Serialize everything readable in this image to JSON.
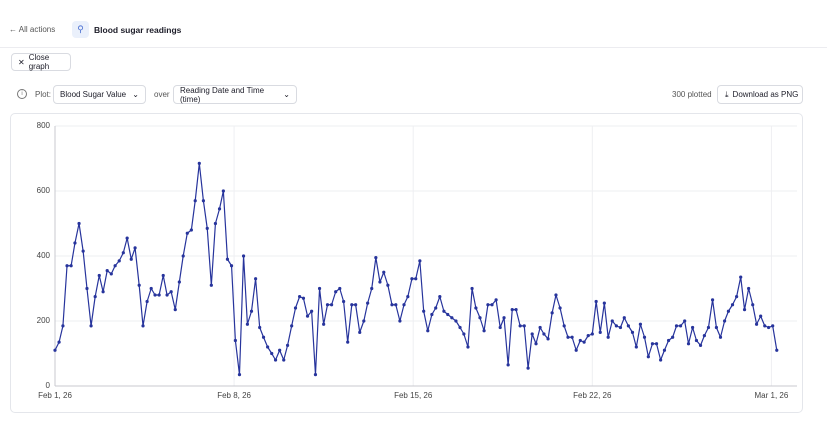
{
  "header": {
    "back": "All actions",
    "title": "Blood sugar readings"
  },
  "toolbar": {
    "close": "Close graph",
    "plot_label": "Plot:",
    "y_field": "Blood Sugar Value",
    "over_label": "over",
    "x_field": "Reading Date and Time (time)",
    "count": "300 plotted",
    "download": "Download as PNG"
  },
  "chart_data": {
    "type": "line",
    "color": "#27349c",
    "grid": true,
    "xlim": [
      0,
      29
    ],
    "ylim": [
      0,
      800
    ],
    "xticks": [
      {
        "value": 0,
        "label": "Feb 1, 26"
      },
      {
        "value": 7,
        "label": "Feb 8, 26"
      },
      {
        "value": 14,
        "label": "Feb 15, 26"
      },
      {
        "value": 21,
        "label": "Feb 22, 26"
      },
      {
        "value": 28,
        "label": "Mar 1, 26"
      }
    ],
    "yticks": [
      0,
      200,
      400,
      600,
      800
    ],
    "x": [
      0,
      0.16,
      0.31,
      0.47,
      0.63,
      0.78,
      0.94,
      1.1,
      1.25,
      1.41,
      1.57,
      1.73,
      1.88,
      2.04,
      2.2,
      2.35,
      2.51,
      2.67,
      2.82,
      2.98,
      3.13,
      3.29,
      3.44,
      3.6,
      3.76,
      3.91,
      4.07,
      4.23,
      4.38,
      4.54,
      4.7,
      4.86,
      5.01,
      5.17,
      5.33,
      5.48,
      5.64,
      5.8,
      5.95,
      6.11,
      6.27,
      6.43,
      6.58,
      6.74,
      6.9,
      7.05,
      7.21,
      7.37,
      7.52,
      7.68,
      7.84,
      8,
      8.15,
      8.31,
      8.47,
      8.62,
      8.78,
      8.94,
      9.09,
      9.25,
      9.4,
      9.56,
      9.71,
      9.87,
      10.03,
      10.18,
      10.34,
      10.5,
      10.65,
      10.81,
      10.97,
      11.13,
      11.28,
      11.44,
      11.6,
      11.75,
      11.91,
      12.07,
      12.22,
      12.38,
      12.54,
      12.7,
      12.85,
      13.01,
      13.17,
      13.32,
      13.48,
      13.64,
      13.79,
      13.95,
      14.1,
      14.26,
      14.41,
      14.57,
      14.73,
      14.88,
      15.04,
      15.2,
      15.35,
      15.51,
      15.67,
      15.83,
      15.98,
      16.14,
      16.3,
      16.45,
      16.61,
      16.77,
      16.92,
      17.08,
      17.24,
      17.4,
      17.55,
      17.71,
      17.87,
      18.02,
      18.18,
      18.34,
      18.49,
      18.65,
      18.8,
      18.96,
      19.11,
      19.27,
      19.43,
      19.58,
      19.74,
      19.9,
      20.05,
      20.21,
      20.37,
      20.53,
      20.68,
      20.84,
      21,
      21.15,
      21.31,
      21.47,
      21.62,
      21.78,
      21.94,
      22.1,
      22.25,
      22.41,
      22.57,
      22.72,
      22.88,
      23.04,
      23.19,
      23.35,
      23.51,
      23.67,
      23.82,
      23.98,
      24.14,
      24.29,
      24.45,
      24.61,
      24.76,
      24.92,
      25.07,
      25.23,
      25.38,
      25.54,
      25.7,
      25.85,
      26.01,
      26.17,
      26.32,
      26.48,
      26.64,
      26.8,
      26.95,
      27.11,
      27.27,
      27.42,
      27.58,
      27.74,
      27.89,
      28.05,
      28.21
    ],
    "values": [
      110,
      135,
      185,
      370,
      370,
      440,
      500,
      415,
      300,
      185,
      275,
      340,
      290,
      355,
      345,
      370,
      385,
      410,
      455,
      390,
      425,
      310,
      185,
      260,
      300,
      280,
      280,
      340,
      280,
      290,
      235,
      320,
      400,
      470,
      480,
      570,
      685,
      570,
      485,
      310,
      500,
      545,
      600,
      390,
      370,
      140,
      35,
      400,
      190,
      230,
      330,
      180,
      150,
      120,
      100,
      80,
      110,
      80,
      125,
      185,
      240,
      275,
      270,
      215,
      230,
      35,
      300,
      190,
      250,
      250,
      290,
      300,
      260,
      135,
      250,
      250,
      165,
      200,
      255,
      300,
      395,
      320,
      350,
      310,
      250,
      250,
      200,
      250,
      275,
      330,
      330,
      385,
      230,
      170,
      220,
      240,
      275,
      230,
      220,
      210,
      200,
      180,
      160,
      120,
      300,
      240,
      210,
      170,
      250,
      250,
      265,
      180,
      210,
      65,
      235,
      235,
      185,
      185,
      55,
      160,
      130,
      180,
      160,
      145,
      225,
      280,
      240,
      185,
      150,
      150,
      110,
      140,
      135,
      155,
      160,
      260,
      165,
      255,
      150,
      200,
      185,
      180,
      210,
      185,
      165,
      120,
      190,
      150,
      90,
      130,
      130,
      80,
      110,
      140,
      150,
      185,
      185,
      200,
      130,
      180,
      140,
      125,
      155,
      180,
      265,
      180,
      150,
      200,
      230,
      250,
      275,
      335,
      235,
      300,
      250,
      190,
      215,
      185,
      180,
      185,
      110
    ]
  }
}
